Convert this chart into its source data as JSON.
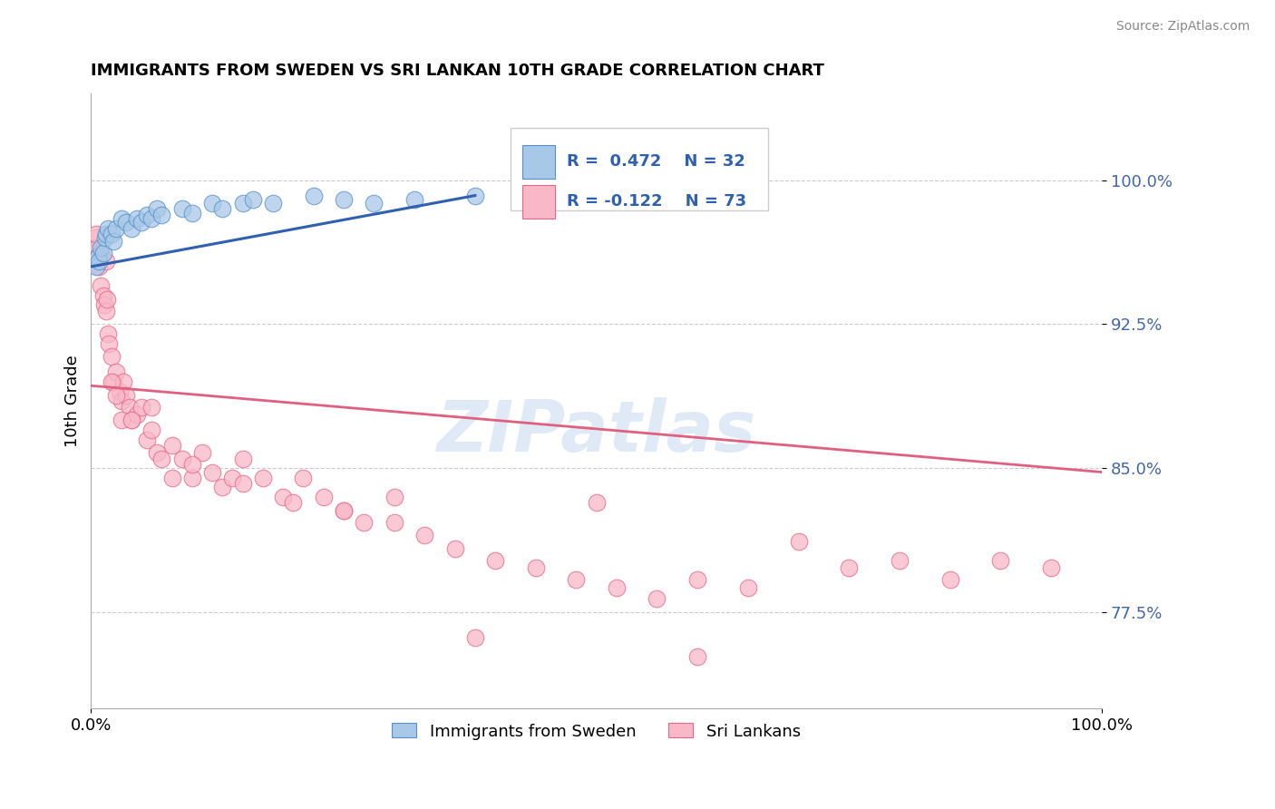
{
  "title": "IMMIGRANTS FROM SWEDEN VS SRI LANKAN 10TH GRADE CORRELATION CHART",
  "source": "Source: ZipAtlas.com",
  "ylabel": "10th Grade",
  "yticks": [
    0.775,
    0.85,
    0.925,
    1.0
  ],
  "ytick_labels": [
    "77.5%",
    "85.0%",
    "92.5%",
    "100.0%"
  ],
  "xmin": 0.0,
  "xmax": 1.0,
  "ymin": 0.725,
  "ymax": 1.045,
  "legend_blue_r": "R =  0.472",
  "legend_blue_n": "N = 32",
  "legend_pink_r": "R = -0.122",
  "legend_pink_n": "N = 73",
  "blue_color": "#a8c8e8",
  "pink_color": "#f8b8c8",
  "blue_edge_color": "#5590c8",
  "pink_edge_color": "#e86888",
  "blue_line_color": "#3060b0",
  "pink_line_color": "#e06080",
  "watermark": "ZIPatlas",
  "sweden_x": [
    0.005,
    0.007,
    0.008,
    0.01,
    0.012,
    0.014,
    0.015,
    0.017,
    0.02,
    0.022,
    0.025,
    0.03,
    0.035,
    0.04,
    0.045,
    0.05,
    0.055,
    0.06,
    0.065,
    0.07,
    0.09,
    0.1,
    0.12,
    0.13,
    0.15,
    0.16,
    0.18,
    0.22,
    0.25,
    0.28,
    0.32,
    0.38
  ],
  "sweden_y": [
    0.955,
    0.96,
    0.958,
    0.965,
    0.962,
    0.97,
    0.972,
    0.975,
    0.972,
    0.968,
    0.975,
    0.98,
    0.978,
    0.975,
    0.98,
    0.978,
    0.982,
    0.98,
    0.985,
    0.982,
    0.985,
    0.983,
    0.988,
    0.985,
    0.988,
    0.99,
    0.988,
    0.992,
    0.99,
    0.988,
    0.99,
    0.992
  ],
  "srilanka_x": [
    0.005,
    0.006,
    0.007,
    0.008,
    0.01,
    0.012,
    0.013,
    0.015,
    0.016,
    0.017,
    0.018,
    0.02,
    0.022,
    0.025,
    0.028,
    0.03,
    0.032,
    0.035,
    0.038,
    0.04,
    0.045,
    0.05,
    0.055,
    0.06,
    0.065,
    0.07,
    0.08,
    0.09,
    0.1,
    0.11,
    0.12,
    0.13,
    0.14,
    0.15,
    0.17,
    0.19,
    0.21,
    0.23,
    0.25,
    0.27,
    0.3,
    0.33,
    0.36,
    0.4,
    0.44,
    0.48,
    0.52,
    0.56,
    0.6,
    0.65,
    0.7,
    0.75,
    0.8,
    0.85,
    0.9,
    0.95,
    0.005,
    0.01,
    0.015,
    0.02,
    0.025,
    0.03,
    0.04,
    0.06,
    0.08,
    0.1,
    0.15,
    0.2,
    0.25,
    0.3,
    0.38,
    0.5,
    0.6
  ],
  "srilanka_y": [
    0.97,
    0.965,
    0.96,
    0.955,
    0.945,
    0.94,
    0.935,
    0.932,
    0.938,
    0.92,
    0.915,
    0.908,
    0.895,
    0.9,
    0.89,
    0.885,
    0.895,
    0.888,
    0.882,
    0.875,
    0.878,
    0.882,
    0.865,
    0.87,
    0.858,
    0.855,
    0.845,
    0.855,
    0.845,
    0.858,
    0.848,
    0.84,
    0.845,
    0.855,
    0.845,
    0.835,
    0.845,
    0.835,
    0.828,
    0.822,
    0.835,
    0.815,
    0.808,
    0.802,
    0.798,
    0.792,
    0.788,
    0.782,
    0.792,
    0.788,
    0.812,
    0.798,
    0.802,
    0.792,
    0.802,
    0.798,
    0.972,
    0.962,
    0.958,
    0.895,
    0.888,
    0.875,
    0.875,
    0.882,
    0.862,
    0.852,
    0.842,
    0.832,
    0.828,
    0.822,
    0.762,
    0.832,
    0.752
  ],
  "pink_trendline_x0": 0.0,
  "pink_trendline_y0": 0.893,
  "pink_trendline_x1": 1.0,
  "pink_trendline_y1": 0.848,
  "blue_trendline_x0": 0.0,
  "blue_trendline_y0": 0.955,
  "blue_trendline_x1": 0.38,
  "blue_trendline_y1": 0.992
}
